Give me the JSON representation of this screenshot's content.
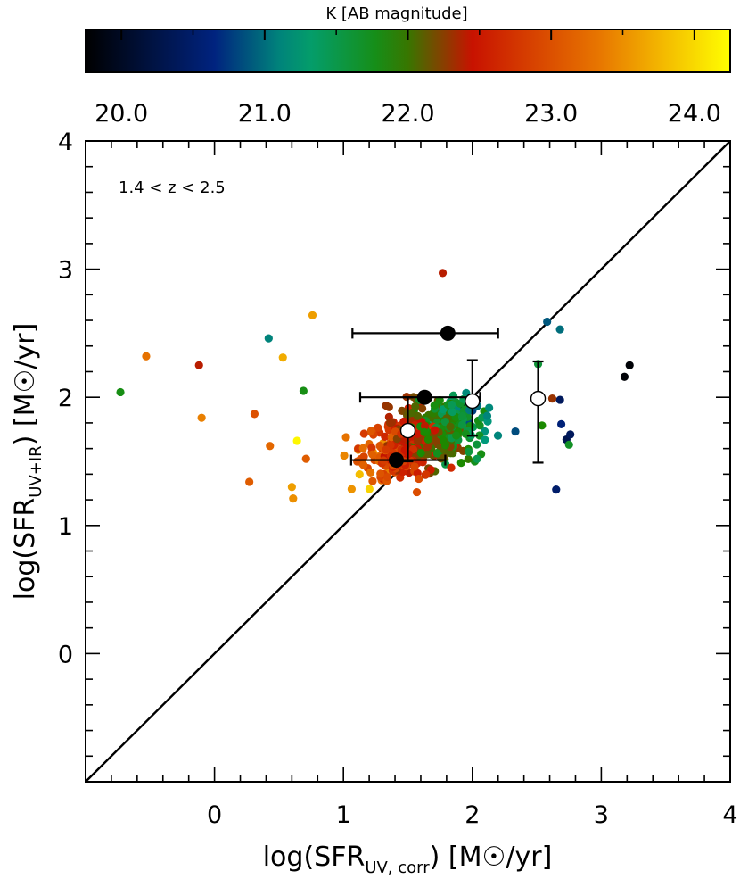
{
  "chart_data": {
    "type": "scatter",
    "panel_label": "1.4 < z < 2.5",
    "x_axis": {
      "label_prefix": "log(SFR",
      "label_sub": "UV, corr",
      "label_suffix": ")  [M",
      "label_unit": "/yr]",
      "range": [
        -1,
        4
      ],
      "ticks": [
        0,
        1,
        2,
        3,
        4
      ],
      "tick_labels": [
        "0",
        "1",
        "2",
        "3",
        "4"
      ]
    },
    "y_axis": {
      "label_prefix": "log(SFR",
      "label_sub": "UV+IR",
      "label_suffix": ")  [M",
      "label_unit": "/yr]",
      "range": [
        -1,
        4
      ],
      "ticks": [
        0,
        1,
        2,
        3,
        4
      ],
      "tick_labels": [
        "0",
        "1",
        "2",
        "3",
        "4"
      ]
    },
    "colorbar": {
      "title": "K [AB magnitude]",
      "range": [
        19.75,
        24.25
      ],
      "ticks": [
        20.0,
        21.0,
        22.0,
        23.0,
        24.0
      ],
      "tick_labels": [
        "20.0",
        "21.0",
        "22.0",
        "23.0",
        "24.0"
      ],
      "colormap_stops": [
        {
          "v": 0.0,
          "color": "#000000"
        },
        {
          "v": 0.2,
          "color": "#00237f"
        },
        {
          "v": 0.33,
          "color": "#00a07a"
        },
        {
          "v": 0.48,
          "color": "#1b8a00"
        },
        {
          "v": 0.6,
          "color": "#c81200"
        },
        {
          "v": 0.8,
          "color": "#e87800"
        },
        {
          "v": 1.0,
          "color": "#ffff00"
        }
      ]
    },
    "one_to_one_line": {
      "x": [
        -1,
        4
      ],
      "y": [
        -1,
        4
      ]
    },
    "outlier_points": [
      {
        "x": -0.73,
        "y": 2.04,
        "k": 21.8
      },
      {
        "x": -0.53,
        "y": 2.32,
        "k": 23.3
      },
      {
        "x": -0.12,
        "y": 2.25,
        "k": 22.4
      },
      {
        "x": -0.1,
        "y": 1.84,
        "k": 23.4
      },
      {
        "x": 0.27,
        "y": 1.34,
        "k": 23.1
      },
      {
        "x": 0.31,
        "y": 1.87,
        "k": 23.0
      },
      {
        "x": 0.42,
        "y": 2.46,
        "k": 21.1
      },
      {
        "x": 0.43,
        "y": 1.62,
        "k": 23.2
      },
      {
        "x": 0.53,
        "y": 2.31,
        "k": 23.7
      },
      {
        "x": 0.6,
        "y": 1.3,
        "k": 23.6
      },
      {
        "x": 0.61,
        "y": 1.21,
        "k": 23.5
      },
      {
        "x": 0.64,
        "y": 1.66,
        "k": 24.2
      },
      {
        "x": 0.69,
        "y": 2.05,
        "k": 21.8
      },
      {
        "x": 0.71,
        "y": 1.52,
        "k": 23.1
      },
      {
        "x": 0.76,
        "y": 2.64,
        "k": 23.6
      },
      {
        "x": 1.77,
        "y": 2.97,
        "k": 22.4
      },
      {
        "x": 2.58,
        "y": 2.59,
        "k": 20.9
      },
      {
        "x": 2.68,
        "y": 2.53,
        "k": 21.0
      },
      {
        "x": 2.65,
        "y": 1.28,
        "k": 20.5
      },
      {
        "x": 3.18,
        "y": 2.16,
        "k": 19.8
      },
      {
        "x": 3.22,
        "y": 2.25,
        "k": 19.8
      },
      {
        "x": 2.73,
        "y": 1.67,
        "k": 20.3
      },
      {
        "x": 2.76,
        "y": 1.71,
        "k": 20.4
      },
      {
        "x": 2.68,
        "y": 1.98,
        "k": 20.4
      },
      {
        "x": 2.69,
        "y": 1.79,
        "k": 20.6
      },
      {
        "x": 2.62,
        "y": 1.99,
        "k": 22.3
      },
      {
        "x": 2.51,
        "y": 2.26,
        "k": 21.6
      },
      {
        "x": 2.54,
        "y": 1.78,
        "k": 21.9
      },
      {
        "x": 2.75,
        "y": 1.63,
        "k": 21.7
      }
    ],
    "cloud_points": {
      "count": 520,
      "description_center": [
        1.55,
        1.75
      ],
      "magnitude_range": [
        20.5,
        24.2
      ]
    },
    "median_filled": [
      {
        "x": 1.81,
        "y": 2.5,
        "xerr": [
          1.07,
          2.2
        ]
      },
      {
        "x": 1.63,
        "y": 2.0,
        "xerr": [
          1.13,
          2.06
        ]
      },
      {
        "x": 1.41,
        "y": 1.51,
        "xerr": [
          1.06,
          1.79
        ]
      }
    ],
    "median_open": [
      {
        "x": 1.5,
        "y": 1.74,
        "yerr": [
          1.5,
          2.0
        ]
      },
      {
        "x": 2.0,
        "y": 1.97,
        "yerr": [
          1.7,
          2.29
        ]
      },
      {
        "x": 2.51,
        "y": 1.99,
        "yerr": [
          1.49,
          2.28
        ]
      }
    ]
  }
}
